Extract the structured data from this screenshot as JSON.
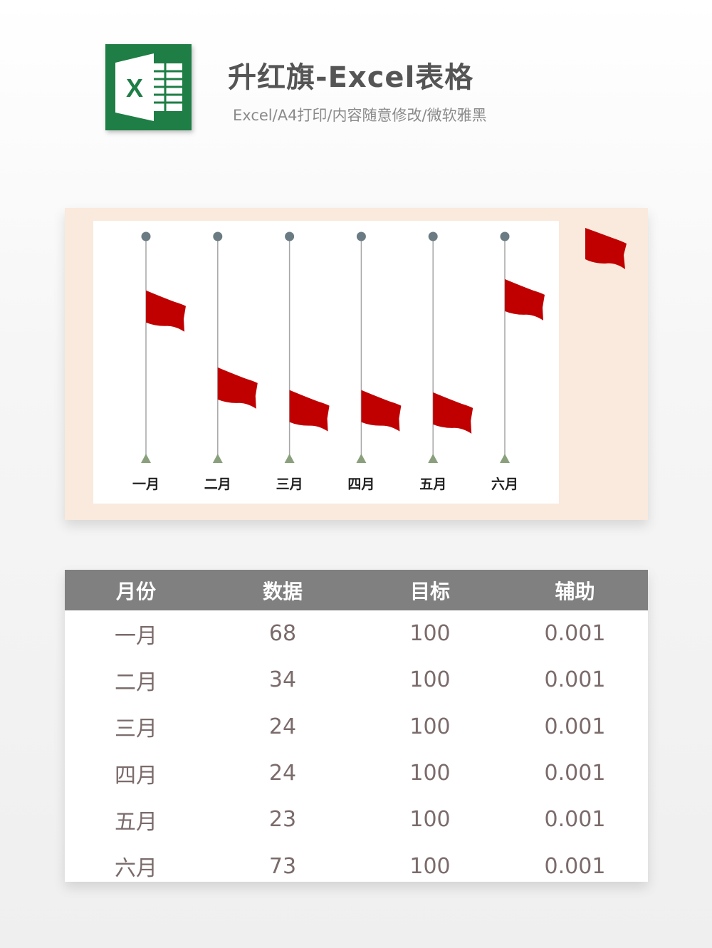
{
  "header": {
    "title": "升红旗-Excel表格",
    "subtitle": "Excel/A4打印/内容随意修改/微软雅黑",
    "logo_letter": "X",
    "logo_icon": "excel-logo-icon",
    "brand_color": "#1e7e45"
  },
  "colors": {
    "flag": "#c00000",
    "pole": "#a6a6a6",
    "pole_top": "#6b7b84",
    "pole_base": "#8aa07c",
    "panel_bg": "#fae9dd",
    "table_header_bg": "#808080"
  },
  "chart_data": {
    "type": "bar",
    "categories": [
      "一月",
      "二月",
      "三月",
      "四月",
      "五月",
      "六月"
    ],
    "series": [
      {
        "values": [
          68,
          34,
          24,
          24,
          23,
          73
        ]
      },
      {
        "values": [
          100,
          100,
          100,
          100,
          100,
          100
        ]
      },
      {
        "values": [
          0.001,
          0.001,
          0.001,
          0.001,
          0.001,
          0.001
        ]
      }
    ],
    "ylim": [
      0,
      100
    ],
    "grid": false
  },
  "table": {
    "headers": [
      "月份",
      "数据",
      "目标",
      "辅助"
    ],
    "rows": [
      [
        "一月",
        "68",
        "100",
        "0.001"
      ],
      [
        "二月",
        "34",
        "100",
        "0.001"
      ],
      [
        "三月",
        "24",
        "100",
        "0.001"
      ],
      [
        "四月",
        "24",
        "100",
        "0.001"
      ],
      [
        "五月",
        "23",
        "100",
        "0.001"
      ],
      [
        "六月",
        "73",
        "100",
        "0.001"
      ]
    ]
  }
}
